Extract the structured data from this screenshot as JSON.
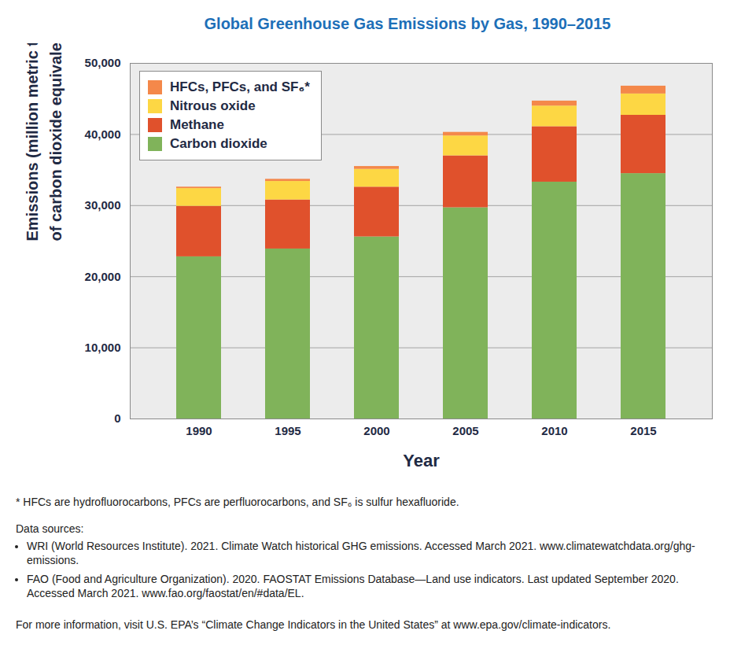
{
  "chart_data": {
    "type": "bar",
    "title": "Global Greenhouse Gas Emissions by Gas, 1990–2015",
    "x_label": "Year",
    "y_label": "Emissions (million metric tons of carbon dioxide equivalents)",
    "categories": [
      "1990",
      "1995",
      "2000",
      "2005",
      "2010",
      "2015"
    ],
    "series": [
      {
        "name": "Carbon dioxide",
        "color": "#80b35a",
        "values": [
          22800,
          23900,
          25600,
          29700,
          33300,
          34500
        ]
      },
      {
        "name": "Methane",
        "color": "#e0512c",
        "values": [
          7100,
          6900,
          7000,
          7300,
          7800,
          8200
        ]
      },
      {
        "name": "Nitrous oxide",
        "color": "#fdd744",
        "values": [
          2500,
          2600,
          2500,
          2800,
          2900,
          3000
        ]
      },
      {
        "name": "HFCs, PFCs, and SF₆*",
        "color": "#f4884a",
        "values": [
          200,
          300,
          400,
          500,
          700,
          1100
        ]
      }
    ],
    "ylim": [
      0,
      50000
    ],
    "yticks": [
      0,
      {
        "value": 10000,
        "label": "10,000"
      },
      {
        "value": 20000,
        "label": "20,000"
      },
      {
        "value": 30000,
        "label": "30,000"
      },
      {
        "value": 40000,
        "label": "40,000"
      },
      {
        "value": 50000,
        "label": "50,000"
      }
    ],
    "stacked": true,
    "grid": true,
    "legend": "upper left",
    "footnote": "* HFCs are hydrofluorocarbons, PFCs are perfluorocarbons, and SF₆ is sulfur hexafluoride.",
    "sources_heading": "Data sources:",
    "sources": [
      "WRI (World Resources Institute). 2021. Climate Watch historical GHG emissions. Accessed March 2021. www.climatewatchdata.org/ghg-emissions.",
      "FAO (Food and Agriculture Organization). 2020. FAOSTAT Emissions Database—Land use indicators. Last updated September 2020. Accessed March 2021. www.fao.org/faostat/en/#data/EL."
    ],
    "more_info": "For more information, visit U.S. EPA’s “Climate Change Indicators in the United States” at www.epa.gov/climate-indicators."
  }
}
